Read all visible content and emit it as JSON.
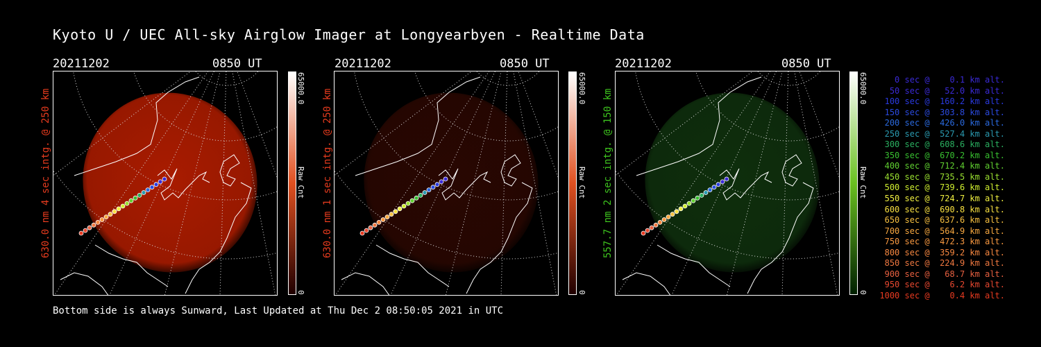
{
  "title": "Kyoto U / UEC All-sky Airglow Imager at Longyearbyen - Realtime Data",
  "footer": "Bottom side is always Sunward, Last Updated at Thu Dec  2 08:50:05 2021 in UTC",
  "panels": [
    {
      "date": "20211202",
      "time": "0850 UT",
      "side_label": "630.0 nm 4 sec intg. @ 250 km",
      "label_color": "#e63b1e",
      "cbar_max": "65000.0",
      "cbar_min": "0",
      "cbar_unit": "Raw Cnt",
      "cbar_color": "#c41a00",
      "glow_color": "#c62000",
      "glow_intensity": 0.85
    },
    {
      "date": "20211202",
      "time": "0850 UT",
      "side_label": "630.0 nm 1 sec intg. @ 250 km",
      "label_color": "#e63b1e",
      "cbar_max": "65000.0",
      "cbar_min": "0",
      "cbar_unit": "Raw Cnt",
      "cbar_color": "#c41a00",
      "glow_color": "#3a0a02",
      "glow_intensity": 0.7
    },
    {
      "date": "20211202",
      "time": "0850 UT",
      "side_label": "557.7 nm 2 sec intg. @ 150 km",
      "label_color": "#3ec41e",
      "cbar_max": "65000.0",
      "cbar_min": "0",
      "cbar_unit": "Raw Cnt",
      "cbar_color": "#3aa000",
      "glow_color": "#123a10",
      "glow_intensity": 0.8
    }
  ],
  "legend": [
    {
      "text": "   0 sec @    0.1 km alt.",
      "color": "#3a2ad6"
    },
    {
      "text": "  50 sec @   52.0 km alt.",
      "color": "#3a2ad6"
    },
    {
      "text": " 100 sec @  160.2 km alt.",
      "color": "#2a3ae0"
    },
    {
      "text": " 150 sec @  303.8 km alt.",
      "color": "#2a4ae0"
    },
    {
      "text": " 200 sec @  426.0 km alt.",
      "color": "#2a6ae0"
    },
    {
      "text": " 250 sec @  527.4 km alt.",
      "color": "#2a9ab0"
    },
    {
      "text": " 300 sec @  608.6 km alt.",
      "color": "#2ab060"
    },
    {
      "text": " 350 sec @  670.2 km alt.",
      "color": "#38c030"
    },
    {
      "text": " 400 sec @  712.4 km alt.",
      "color": "#60d030"
    },
    {
      "text": " 450 sec @  735.5 km alt.",
      "color": "#9ae030"
    },
    {
      "text": " 500 sec @  739.6 km alt.",
      "color": "#d0f030"
    },
    {
      "text": " 550 sec @  724.7 km alt.",
      "color": "#f0f040"
    },
    {
      "text": " 600 sec @  690.8 km alt.",
      "color": "#f8e040"
    },
    {
      "text": " 650 sec @  637.6 km alt.",
      "color": "#f8c040"
    },
    {
      "text": " 700 sec @  564.9 km alt.",
      "color": "#f8a840"
    },
    {
      "text": " 750 sec @  472.3 km alt.",
      "color": "#f89840"
    },
    {
      "text": " 800 sec @  359.2 km alt.",
      "color": "#f88840"
    },
    {
      "text": " 850 sec @  224.9 km alt.",
      "color": "#f07840"
    },
    {
      "text": " 900 sec @   68.7 km alt.",
      "color": "#e86040"
    },
    {
      "text": " 950 sec @    6.2 km alt.",
      "color": "#e84830"
    },
    {
      "text": "1000 sec @    0.4 km alt.",
      "color": "#e83a20"
    }
  ]
}
